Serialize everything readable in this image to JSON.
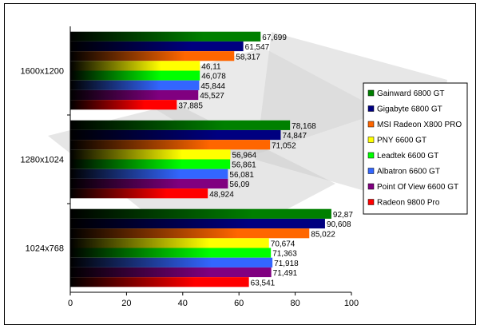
{
  "chart_data": {
    "type": "bar",
    "orientation": "horizontal",
    "categories": [
      "1600x1200",
      "1280x1024",
      "1024x768"
    ],
    "xlim": [
      0,
      100
    ],
    "xticks": [
      0,
      20,
      40,
      60,
      80,
      100
    ],
    "legend_position": "right",
    "series": [
      {
        "name": "Gainward 6800 GT",
        "color": "#008000",
        "values": [
          67.699,
          78.168,
          92.87
        ],
        "labels": [
          "67,699",
          "78,168",
          "92,87"
        ]
      },
      {
        "name": "Gigabyte 6800 GT",
        "color": "#000080",
        "values": [
          61.547,
          74.847,
          90.608
        ],
        "labels": [
          "61,547",
          "74,847",
          "90,608"
        ]
      },
      {
        "name": "MSI Radeon X800 PRO",
        "color": "#ff6600",
        "values": [
          58.317,
          71.052,
          85.022
        ],
        "labels": [
          "58,317",
          "71,052",
          "85,022"
        ]
      },
      {
        "name": "PNY 6600 GT",
        "color": "#ffff00",
        "values": [
          46.11,
          56.964,
          70.674
        ],
        "labels": [
          "46,11",
          "56,964",
          "70,674"
        ]
      },
      {
        "name": "Leadtek 6600 GT",
        "color": "#00ff00",
        "values": [
          46.078,
          56.861,
          71.363
        ],
        "labels": [
          "46,078",
          "56,861",
          "71,363"
        ]
      },
      {
        "name": "Albatron 6600 GT",
        "color": "#3366ff",
        "values": [
          45.844,
          56.081,
          71.918
        ],
        "labels": [
          "45,844",
          "56,081",
          "71,918"
        ]
      },
      {
        "name": "Point Of View 6600 GT",
        "color": "#800080",
        "values": [
          45.527,
          56.09,
          71.491
        ],
        "labels": [
          "45,527",
          "56,09",
          "71,491"
        ]
      },
      {
        "name": "Radeon 9800 Pro",
        "color": "#ff0000",
        "values": [
          37.885,
          48.924,
          63.541
        ],
        "labels": [
          "37,885",
          "48,924",
          "63,541"
        ]
      }
    ]
  }
}
